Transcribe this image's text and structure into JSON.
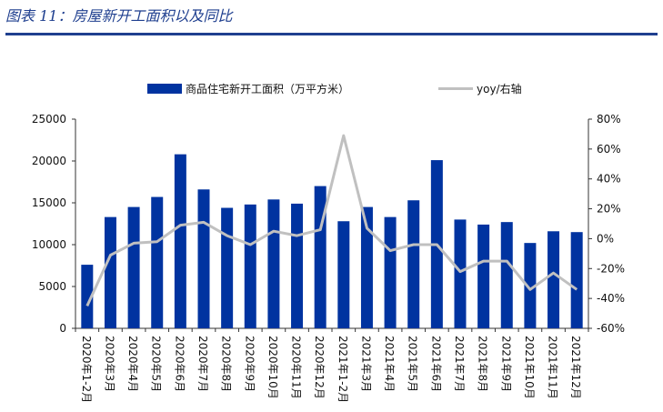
{
  "header": {
    "title": "图表 11：房屋新开工面积以及同比"
  },
  "colors": {
    "bar": "#0033a0",
    "line": "#c0c0c0",
    "title": "#1f3f8f"
  },
  "chart_data": {
    "type": "bar",
    "categories": [
      "2020年1-2月",
      "2020年3月",
      "2020年4月",
      "2020年5月",
      "2020年6月",
      "2020年7月",
      "2020年8月",
      "2020年9月",
      "2020年10月",
      "2020年11月",
      "2020年12月",
      "2021年1-2月",
      "2021年3月",
      "2021年4月",
      "2021年5月",
      "2021年6月",
      "2021年7月",
      "2021年8月",
      "2021年9月",
      "2021年10月",
      "2021年11月",
      "2021年12月"
    ],
    "series": [
      {
        "name": "商品住宅新开工面积（万平方米）",
        "type": "bar",
        "axis": "left",
        "values": [
          7600,
          13300,
          14500,
          15700,
          20800,
          16600,
          14400,
          14800,
          15400,
          14900,
          17000,
          12800,
          14500,
          13300,
          15300,
          20100,
          13000,
          12400,
          12700,
          10200,
          11600,
          11500
        ]
      },
      {
        "name": "yoy/右轴",
        "type": "line",
        "axis": "right",
        "values": [
          -45,
          -11,
          -3,
          -2,
          9,
          11,
          2,
          -4,
          5,
          2,
          6,
          69,
          7,
          -8,
          -4,
          -4,
          -22,
          -15,
          -15,
          -34,
          -23,
          -34
        ]
      }
    ],
    "yleft": {
      "ticks": [
        "0",
        "5000",
        "10000",
        "15000",
        "20000",
        "25000"
      ],
      "range": [
        0,
        25000
      ]
    },
    "yright": {
      "ticks": [
        "-60%",
        "-40%",
        "-20%",
        "0%",
        "20%",
        "40%",
        "60%",
        "80%"
      ],
      "range": [
        -60,
        80
      ]
    },
    "legend": {
      "position": "top"
    }
  }
}
